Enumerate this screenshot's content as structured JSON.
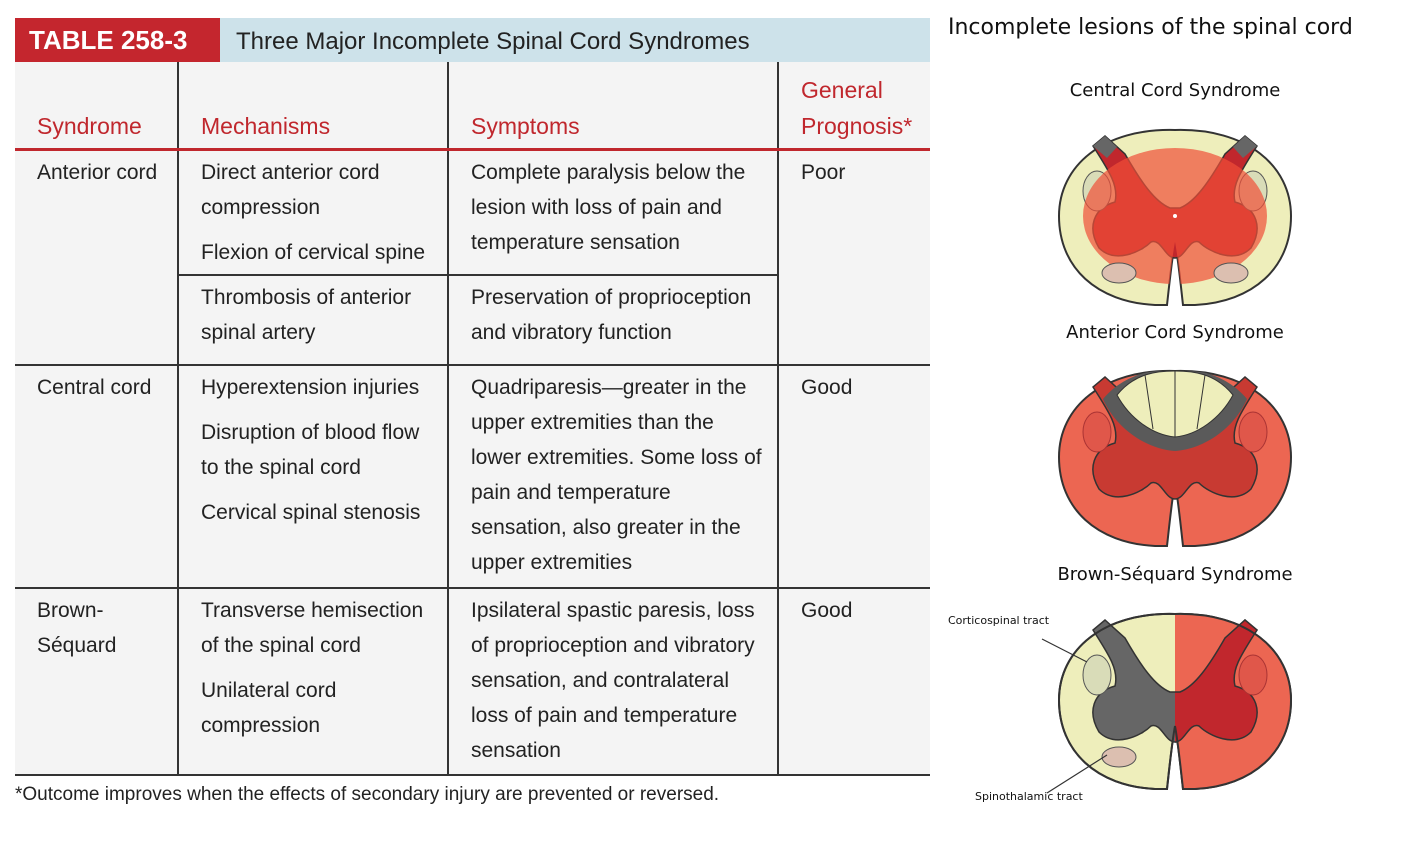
{
  "table": {
    "label": "TABLE 258-3",
    "title": "Three Major Incomplete Spinal Cord Syndromes",
    "headers": [
      "Syndrome",
      "Mechanisms",
      "Symptoms",
      "General Prognosis*"
    ],
    "rows": [
      {
        "syndrome": "Anterior cord",
        "prognosis": "Poor",
        "parts": [
          {
            "mechanisms": [
              "Direct anterior cord compression",
              "Flexion of cervical spine"
            ],
            "symptoms": "Complete paralysis below the lesion with loss of pain and temperature sensation"
          },
          {
            "mechanisms": [
              "Thrombosis of anterior spinal artery"
            ],
            "symptoms": "Preservation of proprioception and vibratory function"
          }
        ]
      },
      {
        "syndrome": "Central cord",
        "prognosis": "Good",
        "parts": [
          {
            "mechanisms": [
              "Hyperextension injuries",
              "Disruption of blood flow to the spinal cord",
              "Cervical spinal stenosis"
            ],
            "symptoms": "Quadriparesis—greater in the upper extremities than the lower extremities. Some loss of pain and temperature sensation, also greater in the upper extremities"
          }
        ]
      },
      {
        "syndrome": "Brown-Séquard",
        "prognosis": "Good",
        "parts": [
          {
            "mechanisms": [
              "Transverse hemisection of the spinal cord",
              "Unilateral cord compression"
            ],
            "symptoms": "Ipsilateral spastic paresis, loss of proprioception and vibratory sensation, and contralateral loss of pain and temperature sensation"
          }
        ]
      }
    ],
    "footnote": "*Outcome improves when the effects of secondary injury are prevented or reversed."
  },
  "diagram": {
    "title": "Incomplete lesions of the spinal cord",
    "panels": [
      "Central Cord Syndrome",
      "Anterior Cord Syndrome",
      "Brown-Séquard Syndrome"
    ],
    "labels": [
      "Corticospinal tract",
      "Spinothalamic tract"
    ]
  }
}
